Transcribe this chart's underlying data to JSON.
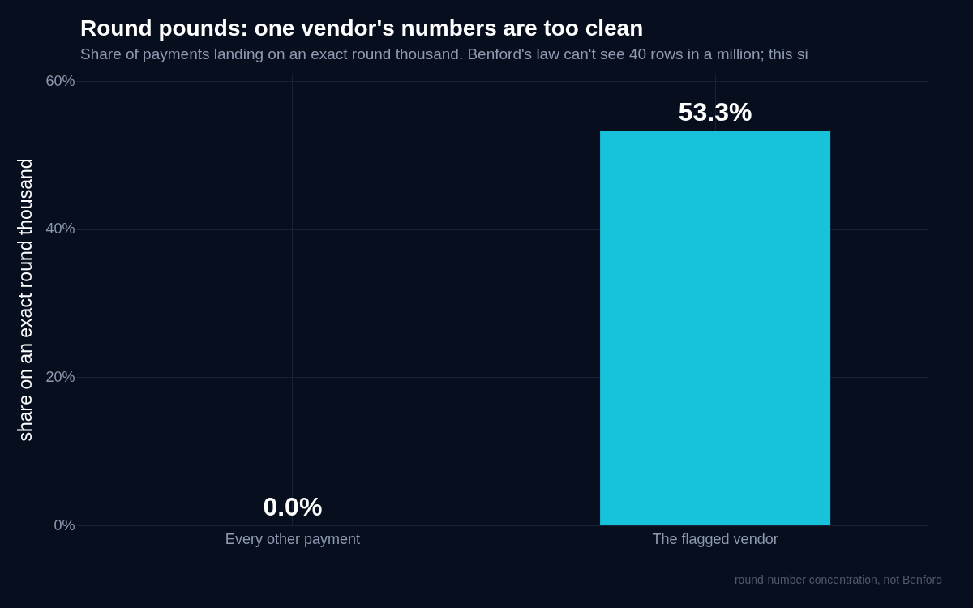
{
  "chart_data": {
    "type": "bar",
    "title": "Round pounds: one vendor's numbers are too clean",
    "subtitle": "Share of payments landing on an exact round thousand. Benford's law can't see 40 rows in a million; this si",
    "ylabel": "share on an exact round thousand",
    "categories": [
      "Every other payment",
      "The flagged vendor"
    ],
    "values": [
      0.0,
      53.3
    ],
    "value_labels": [
      "0.0%",
      "53.3%"
    ],
    "colors": [
      "#17c3da",
      "#17c3da"
    ],
    "ylim": [
      0,
      61
    ],
    "yticks": [
      {
        "value": 0,
        "label": "0%"
      },
      {
        "value": 20,
        "label": "20%"
      },
      {
        "value": 40,
        "label": "40%"
      },
      {
        "value": 60,
        "label": "60%"
      }
    ],
    "grid": true,
    "annotations": [
      "round-number concentration, not Benford"
    ]
  }
}
